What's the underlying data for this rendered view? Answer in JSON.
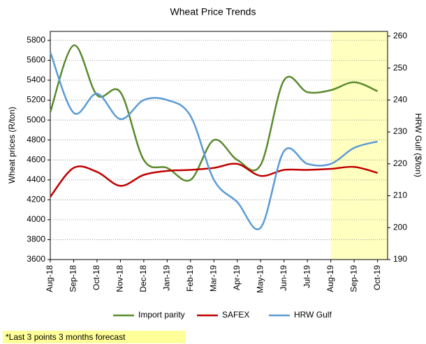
{
  "chart_data": {
    "type": "line",
    "title": "Wheat Price Trends",
    "ylabel": "Wheat prices (R/ton)",
    "y2label": "HRW Gulf ($/ton)",
    "categories": [
      "Aug-18",
      "Sep-18",
      "Oct-18",
      "Nov-18",
      "Dec-18",
      "Jan-19",
      "Feb-19",
      "Mar-19",
      "Apr-19",
      "May-19",
      "Jun-19",
      "Jul-19",
      "Aug-19",
      "Sep-19",
      "Oct-19"
    ],
    "series": [
      {
        "name": "Import parity",
        "color": "#5a8a2e",
        "values": [
          5080,
          5750,
          5250,
          5280,
          4600,
          4520,
          4400,
          4800,
          4600,
          4550,
          5400,
          5280,
          5300,
          5380,
          5290
        ]
      },
      {
        "name": "SAFEX",
        "color": "#c00000",
        "values": [
          4230,
          4520,
          4480,
          4340,
          4450,
          4490,
          4500,
          4520,
          4560,
          4440,
          4500,
          4500,
          4510,
          4530,
          4470
        ]
      },
      {
        "name": "HRW Gulf",
        "color": "#5b9bd5",
        "axis": "y2",
        "values": [
          255,
          236,
          242,
          234,
          240,
          240,
          235,
          215,
          208,
          200,
          224,
          220,
          220,
          225,
          227
        ]
      }
    ],
    "ylim": [
      3600,
      5890
    ],
    "yticks": [
      3600,
      3800,
      4000,
      4200,
      4400,
      4600,
      4800,
      5000,
      5200,
      5400,
      5600,
      5800
    ],
    "y2lim": [
      190,
      261.5
    ],
    "y2ticks": [
      190,
      200,
      210,
      220,
      230,
      240,
      250,
      260
    ],
    "grid": true,
    "shaded_from": "Aug-19",
    "shade_color": "#ffffc0",
    "legend": "bottom",
    "footnote": "*Last 3 points 3 months forecast"
  }
}
